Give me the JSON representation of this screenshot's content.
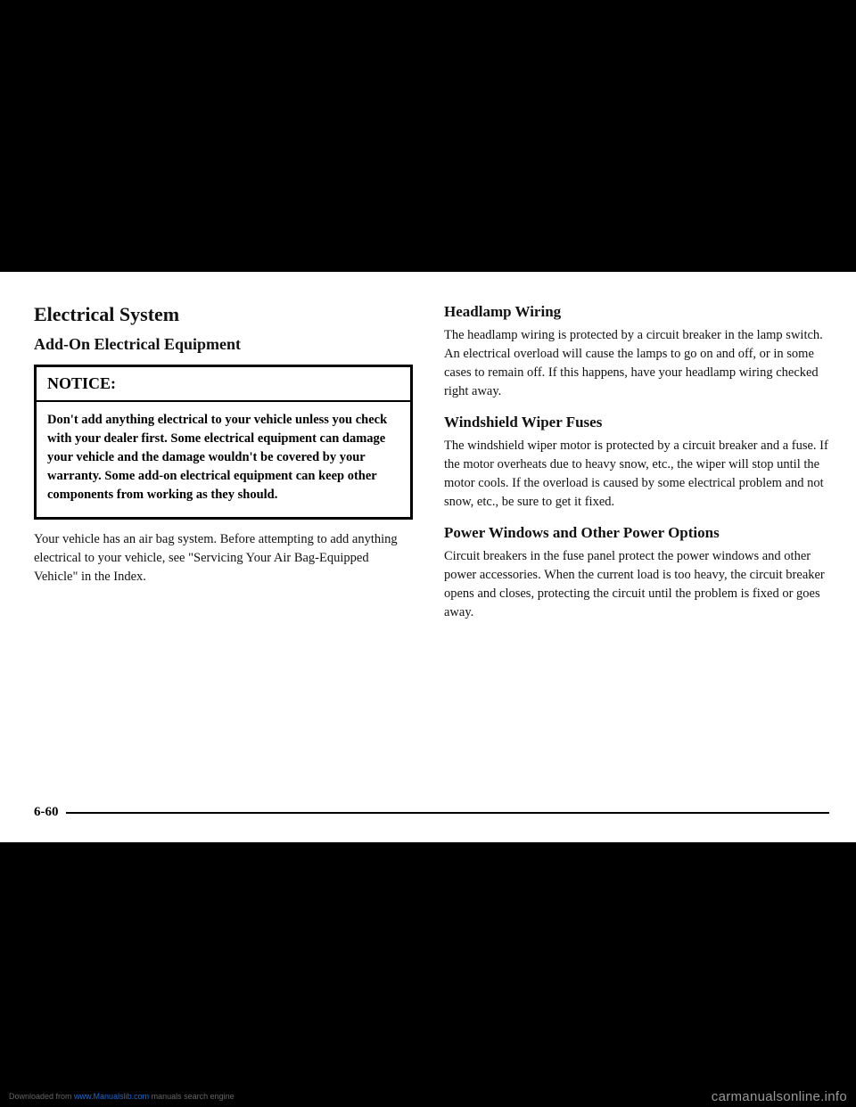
{
  "left": {
    "h1": "Electrical System",
    "h2": "Add-On Electrical Equipment",
    "notice_title": "NOTICE:",
    "notice_body": "Don't add anything electrical to your vehicle unless you check with your dealer first. Some electrical equipment can damage your vehicle and the damage wouldn't be covered by your warranty. Some add-on electrical equipment can keep other components from working as they should.",
    "para1": "Your vehicle has an air bag system. Before attempting to add anything electrical to your vehicle, see \"Servicing Your Air Bag-Equipped Vehicle\" in the Index."
  },
  "right": {
    "sec1_h": "Headlamp Wiring",
    "sec1_p": "The headlamp wiring is protected by a circuit breaker in the lamp switch. An electrical overload will cause the lamps to go on and off, or in some cases to remain off. If this happens, have your headlamp wiring checked right away.",
    "sec2_h": "Windshield Wiper Fuses",
    "sec2_p": "The windshield wiper motor is protected by a circuit breaker and a fuse. If the motor overheats due to heavy snow, etc., the wiper will stop until the motor cools. If the overload is caused by some electrical problem and not snow, etc., be sure to get it fixed.",
    "sec3_h": "Power Windows and Other Power Options",
    "sec3_p": "Circuit breakers in the fuse panel protect the power windows and other power accessories. When the current load is too heavy, the circuit breaker opens and closes, protecting the circuit until the problem is fixed or goes away."
  },
  "page_number": "6-60",
  "footer": {
    "left_prefix": "Downloaded from ",
    "left_link": "www.Manualslib.com",
    "left_suffix": " manuals search engine",
    "right": "carmanualsonline.info"
  }
}
